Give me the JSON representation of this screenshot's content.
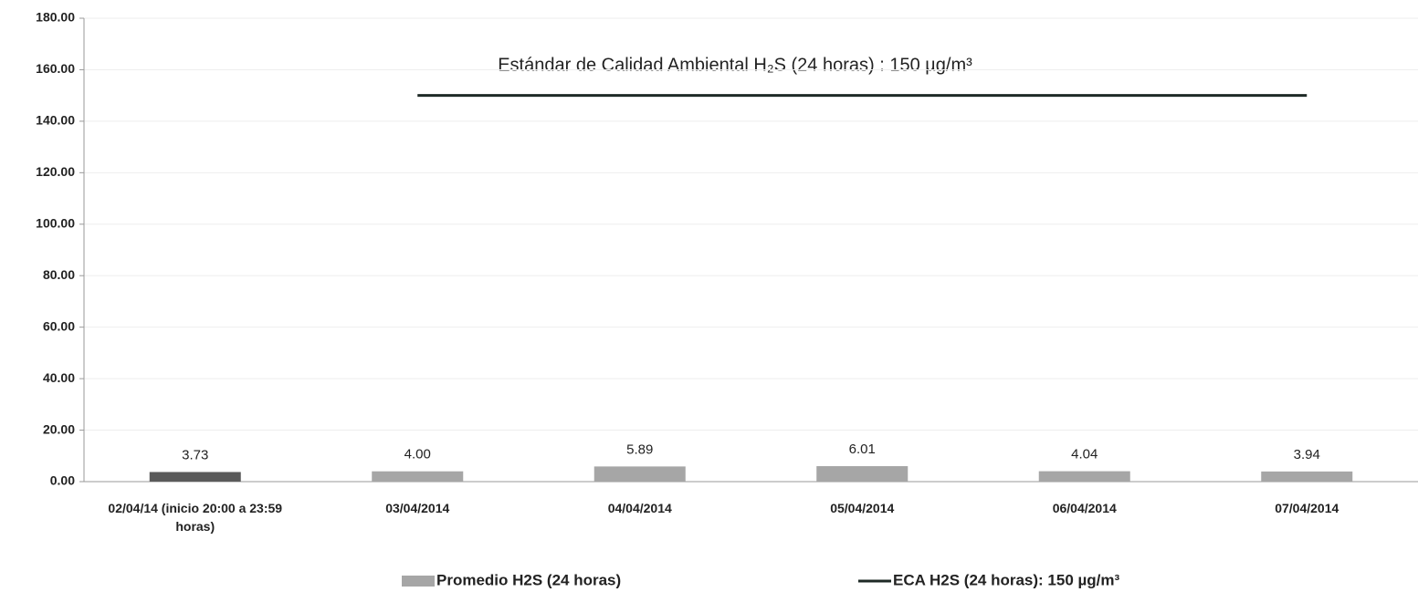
{
  "chart_data": {
    "type": "bar",
    "categories": [
      "02/04/14 (inicio 20:00 a 23:59 horas)",
      "03/04/2014",
      "04/04/2014",
      "05/04/2014",
      "06/04/2014",
      "07/04/2014"
    ],
    "series": [
      {
        "name": "Promedio H2S (24 horas)",
        "type": "bar",
        "color": "#a6a6a6",
        "colors": [
          "#5a5a5a",
          "#a6a6a6",
          "#a6a6a6",
          "#a6a6a6",
          "#a6a6a6",
          "#a6a6a6"
        ],
        "values": [
          3.73,
          4,
          5.89,
          6.01,
          4.04,
          3.94
        ],
        "value_labels": [
          "3.73",
          "4.00",
          "5.89",
          "6.01",
          "4.04",
          "3.94"
        ]
      },
      {
        "name": "ECA H2S (24 horas): 150 µg/m³",
        "type": "line",
        "color": "#1e2a26",
        "values": [
          null,
          150,
          150,
          150,
          150,
          150
        ]
      }
    ],
    "annotation": "Estándar de Calidad Ambiental H₂S (24 horas) : 150 µg/m³",
    "ylim": [
      0,
      180
    ],
    "yticks": [
      {
        "value": 0,
        "label": "0.00"
      },
      {
        "value": 20,
        "label": "20.00"
      },
      {
        "value": 40,
        "label": "40.00"
      },
      {
        "value": 60,
        "label": "60.00"
      },
      {
        "value": 80,
        "label": "80.00"
      },
      {
        "value": 100,
        "label": "100.00"
      },
      {
        "value": 120,
        "label": "120.00"
      },
      {
        "value": 140,
        "label": "140.00"
      },
      {
        "value": 160,
        "label": "160.00"
      },
      {
        "value": 180,
        "label": "180.00"
      }
    ],
    "grid": true,
    "legend": "bottom"
  }
}
